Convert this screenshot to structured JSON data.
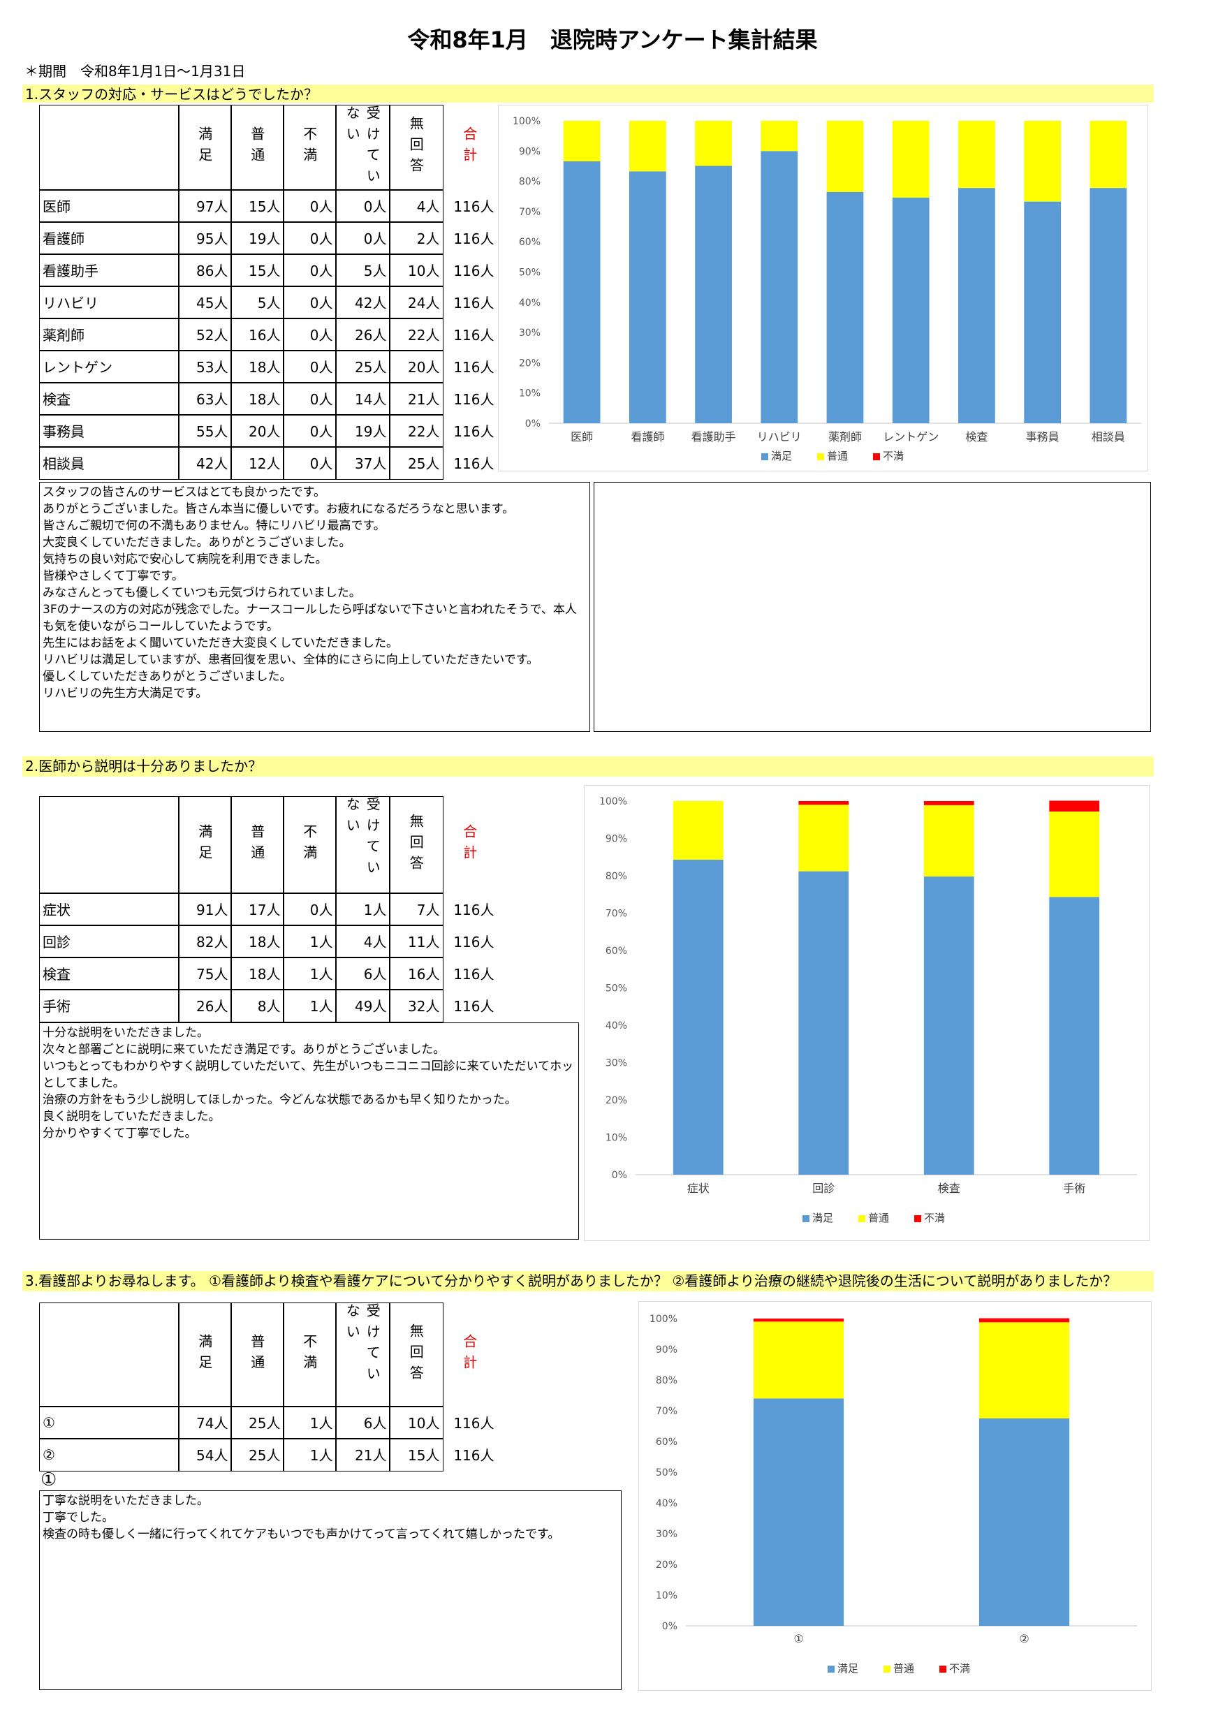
{
  "title": "令和8年1月　退院時アンケート集計結果",
  "period": "＊期間　令和8年1月1日～1月31日",
  "sections": [
    {
      "heading": "1.スタッフの対応・サービスはどうでしたか？",
      "table": {
        "headers": [
          "満足",
          "普通",
          "不満",
          "受けていない",
          "無回答",
          "合計"
        ],
        "rows": [
          {
            "label": "医師",
            "cells": [
              "97人",
              "15人",
              "0人",
              "0人",
              "4人",
              "116人"
            ]
          },
          {
            "label": "看護師",
            "cells": [
              "95人",
              "19人",
              "0人",
              "0人",
              "2人",
              "116人"
            ]
          },
          {
            "label": "看護助手",
            "cells": [
              "86人",
              "15人",
              "0人",
              "5人",
              "10人",
              "116人"
            ]
          },
          {
            "label": "リハビリ",
            "cells": [
              "45人",
              "5人",
              "0人",
              "42人",
              "24人",
              "116人"
            ]
          },
          {
            "label": "薬剤師",
            "cells": [
              "52人",
              "16人",
              "0人",
              "26人",
              "22人",
              "116人"
            ]
          },
          {
            "label": "レントゲン",
            "cells": [
              "53人",
              "18人",
              "0人",
              "25人",
              "20人",
              "116人"
            ]
          },
          {
            "label": "検査",
            "cells": [
              "63人",
              "18人",
              "0人",
              "14人",
              "21人",
              "116人"
            ]
          },
          {
            "label": "事務員",
            "cells": [
              "55人",
              "20人",
              "0人",
              "19人",
              "22人",
              "116人"
            ]
          },
          {
            "label": "相談員",
            "cells": [
              "42人",
              "12人",
              "0人",
              "37人",
              "25人",
              "116人"
            ]
          }
        ]
      },
      "comments": [
        "スタッフの皆さんのサービスはとても良かったです。",
        "ありがとうございました。皆さん本当に優しいです。お疲れになるだろうなと思います。",
        "皆さんご親切で何の不満もありません。特にリハビリ最高です。",
        "大変良くしていただきました。ありがとうございました。",
        "気持ちの良い対応で安心して病院を利用できました。",
        "皆様やさしくて丁寧です。",
        "みなさんとっても優しくていつも元気づけられていました。",
        "3Fのナースの方の対応が残念でした。ナースコールしたら呼ばないで下さいと言われたそうで、本人も気を使いながらコールしていたようです。",
        "先生にはお話をよく聞いていただき大変良くしていただきました。",
        "リハビリは満足していますが、患者回復を思い、全体的にさらに向上していただきたいです。",
        "優しくしていただきありがとうございました。",
        "リハビリの先生方大満足です。"
      ],
      "chart": {
        "type": "bar",
        "stacked": true,
        "categories": [
          "医師",
          "看護師",
          "看護助手",
          "リハビリ",
          "薬剤師",
          "レントゲン",
          "検査",
          "事務員",
          "相談員"
        ],
        "series": [
          {
            "name": "満足",
            "color": "#5b9bd5",
            "values": [
              86.6,
              83.3,
              85.1,
              90.0,
              76.5,
              74.6,
              77.8,
              73.3,
              77.8
            ]
          },
          {
            "name": "普通",
            "color": "#ffff00",
            "values": [
              13.4,
              16.7,
              14.9,
              10.0,
              23.5,
              25.4,
              22.2,
              26.7,
              22.2
            ]
          },
          {
            "name": "不満",
            "color": "#ff0000",
            "values": [
              0,
              0,
              0,
              0,
              0,
              0,
              0,
              0,
              0
            ]
          }
        ],
        "ylim": [
          0,
          100
        ],
        "yticks": [
          {
            "value": 0,
            "label": "0%"
          },
          {
            "value": 10,
            "label": "10%"
          },
          {
            "value": 20,
            "label": "20%"
          },
          {
            "value": 30,
            "label": "30%"
          },
          {
            "value": 40,
            "label": "40%"
          },
          {
            "value": 50,
            "label": "50%"
          },
          {
            "value": 60,
            "label": "60%"
          },
          {
            "value": 70,
            "label": "70%"
          },
          {
            "value": 80,
            "label": "80%"
          },
          {
            "value": 90,
            "label": "90%"
          },
          {
            "value": 100,
            "label": "100%"
          }
        ],
        "legend": "bottom"
      }
    },
    {
      "heading": "2.医師から説明は十分ありましたか？",
      "table": {
        "headers": [
          "満足",
          "普通",
          "不満",
          "受けていない",
          "無回答",
          "合計"
        ],
        "rows": [
          {
            "label": "症状",
            "cells": [
              "91人",
              "17人",
              "0人",
              "1人",
              "7人",
              "116人"
            ]
          },
          {
            "label": "回診",
            "cells": [
              "82人",
              "18人",
              "1人",
              "4人",
              "11人",
              "116人"
            ]
          },
          {
            "label": "検査",
            "cells": [
              "75人",
              "18人",
              "1人",
              "6人",
              "16人",
              "116人"
            ]
          },
          {
            "label": "手術",
            "cells": [
              "26人",
              "8人",
              "1人",
              "49人",
              "32人",
              "116人"
            ]
          }
        ]
      },
      "comments": [
        "十分な説明をいただきました。",
        "次々と部署ごとに説明に来ていただき満足です。ありがとうございました。",
        "いつもとってもわかりやすく説明していただいて、先生がいつもニコニコ回診に来ていただいてホッとしてました。",
        "治療の方針をもう少し説明してほしかった。今どんな状態であるかも早く知りたかった。",
        "良く説明をしていただきました。",
        "分かりやすくて丁寧でした。"
      ],
      "chart": {
        "type": "bar",
        "stacked": true,
        "categories": [
          "症状",
          "回診",
          "検査",
          "手術"
        ],
        "series": [
          {
            "name": "満足",
            "color": "#5b9bd5",
            "values": [
              84.3,
              81.2,
              79.8,
              74.3
            ]
          },
          {
            "name": "普通",
            "color": "#ffff00",
            "values": [
              15.7,
              17.8,
              19.1,
              22.9
            ]
          },
          {
            "name": "不満",
            "color": "#ff0000",
            "values": [
              0,
              1.0,
              1.1,
              2.9
            ]
          }
        ],
        "ylim": [
          0,
          100
        ],
        "yticks": [
          {
            "value": 0,
            "label": "0%"
          },
          {
            "value": 10,
            "label": "10%"
          },
          {
            "value": 20,
            "label": "20%"
          },
          {
            "value": 30,
            "label": "30%"
          },
          {
            "value": 40,
            "label": "40%"
          },
          {
            "value": 50,
            "label": "50%"
          },
          {
            "value": 60,
            "label": "60%"
          },
          {
            "value": 70,
            "label": "70%"
          },
          {
            "value": 80,
            "label": "80%"
          },
          {
            "value": 90,
            "label": "90%"
          },
          {
            "value": 100,
            "label": "100%"
          }
        ],
        "legend": "bottom"
      }
    },
    {
      "heading": "3.看護部よりお尋ねします。 ①看護師より検査や看護ケアについて分かりやすく説明がありましたか？ ②看護師より治療の継続や退院後の生活について説明がありましたか？",
      "table": {
        "headers": [
          "満足",
          "普通",
          "不満",
          "受けていない",
          "無回答",
          "合計"
        ],
        "rows": [
          {
            "label": "①",
            "cells": [
              "74人",
              "25人",
              "1人",
              "6人",
              "10人",
              "116人"
            ]
          },
          {
            "label": "②",
            "cells": [
              "54人",
              "25人",
              "1人",
              "21人",
              "15人",
              "116人"
            ]
          }
        ]
      },
      "comment_label": "①",
      "comments": [
        "丁寧な説明をいただきました。",
        "丁寧でした。",
        "検査の時も優しく一緒に行ってくれてケアもいつでも声かけてって言ってくれて嬉しかったです。"
      ],
      "chart": {
        "type": "bar",
        "stacked": true,
        "categories": [
          "①",
          "②"
        ],
        "series": [
          {
            "name": "満足",
            "color": "#5b9bd5",
            "values": [
              74.0,
              67.5
            ]
          },
          {
            "name": "普通",
            "color": "#ffff00",
            "values": [
              25.0,
              31.3
            ]
          },
          {
            "name": "不満",
            "color": "#ff0000",
            "values": [
              1.0,
              1.3
            ]
          }
        ],
        "ylim": [
          0,
          100
        ],
        "yticks": [
          {
            "value": 0,
            "label": "0%"
          },
          {
            "value": 10,
            "label": "10%"
          },
          {
            "value": 20,
            "label": "20%"
          },
          {
            "value": 30,
            "label": "30%"
          },
          {
            "value": 40,
            "label": "40%"
          },
          {
            "value": 50,
            "label": "50%"
          },
          {
            "value": 60,
            "label": "60%"
          },
          {
            "value": 70,
            "label": "70%"
          },
          {
            "value": 80,
            "label": "80%"
          },
          {
            "value": 90,
            "label": "90%"
          },
          {
            "value": 100,
            "label": "100%"
          }
        ],
        "legend": "bottom"
      }
    }
  ]
}
